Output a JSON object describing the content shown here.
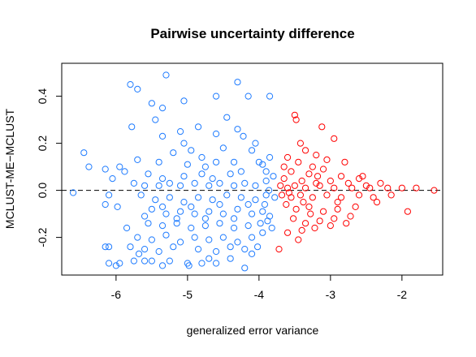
{
  "chart_data": {
    "type": "scatter",
    "title": "Pairwise uncertainty difference",
    "xlabel": "generalized error variance",
    "ylabel": "MCLUST-ME−MCLUST",
    "xlim": [
      -6.76,
      -1.43
    ],
    "ylim": [
      -0.36,
      0.54
    ],
    "xticks": [
      -6,
      -5,
      -4,
      -3,
      -2
    ],
    "xtick_labels": [
      "-6",
      "-5",
      "-4",
      "-3",
      "-2"
    ],
    "yticks": [
      -0.2,
      0.0,
      0.2,
      0.4
    ],
    "ytick_labels": [
      "-0.2",
      "0.0",
      "0.2",
      "0.4"
    ],
    "grid": false,
    "reference_line": {
      "y": 0,
      "style": "dashed"
    },
    "colors": {
      "blue": "#1E7BFF",
      "red": "#FF0000",
      "axis": "#000000"
    },
    "series": [
      {
        "color": "#1E7BFF",
        "points": [
          [
            -6.6,
            -0.01
          ],
          [
            -6.45,
            0.16
          ],
          [
            -6.38,
            0.1
          ],
          [
            -6.15,
            0.09
          ],
          [
            -6.05,
            0.05
          ],
          [
            -5.95,
            0.1
          ],
          [
            -5.88,
            0.08
          ],
          [
            -6.15,
            -0.06
          ],
          [
            -6.1,
            -0.02
          ],
          [
            -5.98,
            -0.07
          ],
          [
            -6.15,
            -0.24
          ],
          [
            -6.1,
            -0.24
          ],
          [
            -6.1,
            -0.31
          ],
          [
            -6.0,
            -0.32
          ],
          [
            -5.95,
            -0.31
          ],
          [
            -5.75,
            -0.3
          ],
          [
            -5.68,
            -0.27
          ],
          [
            -5.6,
            -0.3
          ],
          [
            -5.5,
            -0.3
          ],
          [
            -5.35,
            -0.32
          ],
          [
            -5.25,
            -0.3
          ],
          [
            -5.0,
            -0.31
          ],
          [
            -4.98,
            -0.32
          ],
          [
            -4.8,
            -0.31
          ],
          [
            -4.7,
            -0.29
          ],
          [
            -4.6,
            -0.31
          ],
          [
            -4.4,
            -0.29
          ],
          [
            -4.2,
            -0.33
          ],
          [
            -4.1,
            -0.27
          ],
          [
            -5.8,
            0.45
          ],
          [
            -5.7,
            0.43
          ],
          [
            -5.3,
            0.49
          ],
          [
            -5.5,
            0.37
          ],
          [
            -5.35,
            0.35
          ],
          [
            -5.05,
            0.38
          ],
          [
            -4.6,
            0.4
          ],
          [
            -4.3,
            0.46
          ],
          [
            -4.15,
            0.4
          ],
          [
            -4.45,
            0.31
          ],
          [
            -3.85,
            0.4
          ],
          [
            -5.78,
            0.27
          ],
          [
            -5.45,
            0.3
          ],
          [
            -5.35,
            0.23
          ],
          [
            -5.1,
            0.25
          ],
          [
            -4.85,
            0.27
          ],
          [
            -4.6,
            0.24
          ],
          [
            -4.3,
            0.26
          ],
          [
            -4.22,
            0.23
          ],
          [
            -4.05,
            0.2
          ],
          [
            -5.2,
            0.16
          ],
          [
            -5.05,
            0.2
          ],
          [
            -4.95,
            0.17
          ],
          [
            -4.8,
            0.14
          ],
          [
            -4.5,
            0.18
          ],
          [
            -4.1,
            0.17
          ],
          [
            -4.35,
            0.12
          ],
          [
            -4.75,
            0.1
          ],
          [
            -5.55,
            0.07
          ],
          [
            -5.35,
            0.05
          ],
          [
            -5.05,
            0.06
          ],
          [
            -4.65,
            0.05
          ],
          [
            -4.4,
            0.07
          ],
          [
            -3.95,
            0.11
          ],
          [
            -3.85,
            0.14
          ],
          [
            -5.75,
            0.03
          ],
          [
            -5.6,
            0.02
          ],
          [
            -5.4,
            0.02
          ],
          [
            -5.25,
            0.03
          ],
          [
            -5.1,
            0.02
          ],
          [
            -4.9,
            0.03
          ],
          [
            -4.7,
            0.02
          ],
          [
            -4.55,
            0.03
          ],
          [
            -4.35,
            0.02
          ],
          [
            -4.2,
            0.03
          ],
          [
            -4.05,
            0.02
          ],
          [
            -3.9,
            0.04
          ],
          [
            -3.8,
            0.06
          ],
          [
            -5.65,
            -0.02
          ],
          [
            -5.45,
            -0.04
          ],
          [
            -5.25,
            -0.03
          ],
          [
            -5.05,
            -0.05
          ],
          [
            -4.85,
            -0.03
          ],
          [
            -4.65,
            -0.04
          ],
          [
            -4.45,
            -0.02
          ],
          [
            -4.25,
            -0.03
          ],
          [
            -4.05,
            -0.04
          ],
          [
            -3.9,
            -0.02
          ],
          [
            -3.78,
            -0.03
          ],
          [
            -5.5,
            -0.08
          ],
          [
            -5.3,
            -0.1
          ],
          [
            -5.1,
            -0.09
          ],
          [
            -4.9,
            -0.1
          ],
          [
            -4.7,
            -0.09
          ],
          [
            -4.5,
            -0.1
          ],
          [
            -4.3,
            -0.08
          ],
          [
            -4.1,
            -0.1
          ],
          [
            -3.95,
            -0.09
          ],
          [
            -3.85,
            -0.11
          ],
          [
            -5.55,
            -0.14
          ],
          [
            -5.35,
            -0.15
          ],
          [
            -5.15,
            -0.14
          ],
          [
            -4.95,
            -0.16
          ],
          [
            -4.75,
            -0.15
          ],
          [
            -4.55,
            -0.14
          ],
          [
            -4.35,
            -0.16
          ],
          [
            -4.15,
            -0.15
          ],
          [
            -3.98,
            -0.14
          ],
          [
            -3.88,
            -0.13
          ],
          [
            -5.7,
            -0.2
          ],
          [
            -5.5,
            -0.21
          ],
          [
            -5.3,
            -0.19
          ],
          [
            -5.1,
            -0.22
          ],
          [
            -4.9,
            -0.2
          ],
          [
            -4.7,
            -0.21
          ],
          [
            -4.5,
            -0.2
          ],
          [
            -4.3,
            -0.22
          ],
          [
            -4.1,
            -0.2
          ],
          [
            -4.02,
            -0.24
          ],
          [
            -5.6,
            -0.25
          ],
          [
            -5.4,
            -0.26
          ],
          [
            -5.2,
            -0.24
          ],
          [
            -4.85,
            -0.25
          ],
          [
            -4.6,
            -0.26
          ],
          [
            -4.4,
            -0.24
          ],
          [
            -4.2,
            -0.25
          ],
          [
            -3.95,
            -0.18
          ],
          [
            -3.82,
            -0.16
          ],
          [
            -3.92,
            -0.06
          ],
          [
            -3.86,
            0.0
          ],
          [
            -3.9,
            0.08
          ],
          [
            -4.0,
            0.12
          ],
          [
            -4.25,
            0.08
          ],
          [
            -4.6,
            0.12
          ],
          [
            -5.0,
            0.11
          ],
          [
            -5.4,
            0.12
          ],
          [
            -5.7,
            0.13
          ],
          [
            -4.8,
            0.07
          ],
          [
            -4.15,
            -0.06
          ],
          [
            -4.35,
            -0.12
          ],
          [
            -4.55,
            -0.06
          ],
          [
            -4.75,
            -0.12
          ],
          [
            -4.95,
            -0.07
          ],
          [
            -5.15,
            -0.12
          ],
          [
            -5.35,
            -0.07
          ],
          [
            -5.6,
            -0.11
          ],
          [
            -5.8,
            -0.24
          ],
          [
            -5.85,
            -0.16
          ]
        ]
      },
      {
        "color": "#FF0000",
        "points": [
          [
            -3.5,
            0.32
          ],
          [
            -3.48,
            0.3
          ],
          [
            -3.12,
            0.27
          ],
          [
            -2.95,
            0.22
          ],
          [
            -3.35,
            0.17
          ],
          [
            -3.2,
            0.15
          ],
          [
            -3.6,
            0.14
          ],
          [
            -3.45,
            0.12
          ],
          [
            -3.05,
            0.13
          ],
          [
            -2.8,
            0.12
          ],
          [
            -3.55,
            0.08
          ],
          [
            -3.3,
            0.07
          ],
          [
            -3.1,
            0.09
          ],
          [
            -2.85,
            0.06
          ],
          [
            -2.6,
            0.05
          ],
          [
            -3.65,
            0.05
          ],
          [
            -3.4,
            0.04
          ],
          [
            -3.2,
            0.03
          ],
          [
            -3.0,
            0.04
          ],
          [
            -2.75,
            0.03
          ],
          [
            -2.5,
            0.02
          ],
          [
            -2.3,
            0.03
          ],
          [
            -3.7,
            0.02
          ],
          [
            -3.6,
            0.01
          ],
          [
            -3.5,
            0.02
          ],
          [
            -3.35,
            0.01
          ],
          [
            -3.15,
            0.02
          ],
          [
            -2.95,
            0.01
          ],
          [
            -2.7,
            0.01
          ],
          [
            -2.45,
            0.01
          ],
          [
            -2.2,
            0.01
          ],
          [
            -2.0,
            0.01
          ],
          [
            -1.8,
            0.01
          ],
          [
            -1.55,
            0.0
          ],
          [
            -3.68,
            -0.02
          ],
          [
            -3.55,
            -0.03
          ],
          [
            -3.42,
            -0.02
          ],
          [
            -3.25,
            -0.03
          ],
          [
            -3.05,
            -0.02
          ],
          [
            -2.85,
            -0.03
          ],
          [
            -2.6,
            -0.02
          ],
          [
            -2.4,
            -0.03
          ],
          [
            -2.15,
            -0.02
          ],
          [
            -3.62,
            -0.06
          ],
          [
            -3.48,
            -0.08
          ],
          [
            -3.3,
            -0.07
          ],
          [
            -3.1,
            -0.09
          ],
          [
            -2.9,
            -0.08
          ],
          [
            -2.65,
            -0.07
          ],
          [
            -2.35,
            -0.05
          ],
          [
            -3.52,
            -0.12
          ],
          [
            -3.35,
            -0.14
          ],
          [
            -3.15,
            -0.13
          ],
          [
            -2.95,
            -0.12
          ],
          [
            -2.72,
            -0.11
          ],
          [
            -3.6,
            -0.18
          ],
          [
            -3.4,
            -0.17
          ],
          [
            -3.22,
            -0.16
          ],
          [
            -3.0,
            -0.15
          ],
          [
            -2.78,
            -0.14
          ],
          [
            -3.72,
            -0.25
          ],
          [
            -3.45,
            -0.21
          ],
          [
            -1.92,
            -0.09
          ],
          [
            -2.55,
            0.06
          ],
          [
            -3.25,
            0.1
          ],
          [
            -3.58,
            -0.01
          ],
          [
            -3.38,
            -0.05
          ],
          [
            -3.18,
            0.06
          ],
          [
            -2.9,
            -0.05
          ],
          [
            -3.65,
            0.1
          ],
          [
            -3.42,
            0.2
          ],
          [
            -3.28,
            -0.1
          ]
        ]
      }
    ]
  }
}
